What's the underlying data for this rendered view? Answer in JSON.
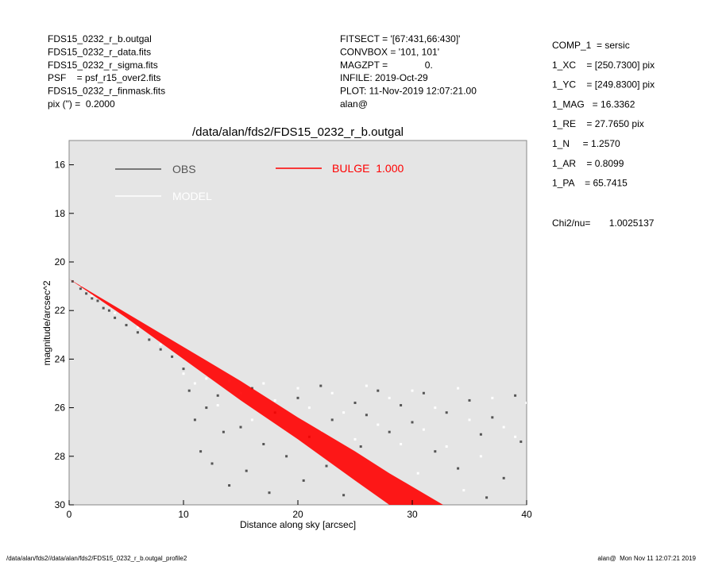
{
  "header": {
    "left": [
      "FDS15_0232_r_b.outgal",
      "FDS15_0232_r_data.fits",
      "FDS15_0232_r_sigma.fits",
      "PSF    = psf_r15_over2.fits",
      "FDS15_0232_r_finmask.fits",
      "pix (\") =  0.2000"
    ],
    "middle": [
      "FITSECT = '[67:431,66:430]'",
      "CONVBOX = '101, 101'",
      "MAGZPT =              0.",
      "INFILE: 2019-Oct-29",
      "PLOT: 11-Nov-2019 12:07:21.00",
      "alan@"
    ],
    "right": [
      "COMP_1  = sersic",
      "1_XC    = [250.7300] pix",
      "1_YC    = [249.8300] pix",
      "1_MAG   = 16.3362",
      "1_RE    = 27.7650 pix",
      "1_N     = 1.2570",
      "1_AR    = 0.8099",
      "1_PA    = 65.7415"
    ],
    "chi2": "Chi2/nu=       1.0025137"
  },
  "footer": {
    "left": "/data/alan/fds2//data/alan/fds2/FDS15_0232_r_b.outgal_profile2",
    "right": "alan@  Mon Nov 11 12:07:21 2019"
  },
  "chart_data": {
    "type": "scatter",
    "title": "/data/alan/fds2/FDS15_0232_r_b.outgal",
    "x_label": "Distance along sky [arcsec]",
    "y_label": "magnitude/arcsec^2",
    "xlim": [
      0,
      40
    ],
    "xticks": [
      0,
      10,
      20,
      30,
      40
    ],
    "ylim": [
      30,
      15
    ],
    "yticks": [
      16,
      18,
      20,
      22,
      24,
      26,
      28,
      30
    ],
    "background": "#e5e5e5",
    "series": [
      {
        "name": "OBS",
        "color": "#555555",
        "x": [
          0.3,
          1,
          1.5,
          2,
          2.5,
          3,
          3.5,
          4,
          5,
          6,
          7,
          8,
          9,
          10,
          10.5,
          11,
          11.5,
          12,
          12.5,
          13,
          13.5,
          14,
          15,
          15.5,
          16,
          17,
          17.5,
          18,
          19,
          20,
          20.5,
          21,
          22,
          22.5,
          23,
          24,
          25,
          25.5,
          26,
          27,
          28,
          29,
          30,
          31,
          32,
          33,
          34,
          35,
          36,
          37,
          38,
          39,
          39.5,
          36.5
        ],
        "values": [
          20.8,
          21.1,
          21.3,
          21.5,
          21.6,
          21.9,
          22.0,
          22.3,
          22.6,
          22.9,
          23.2,
          23.6,
          23.9,
          24.4,
          25.3,
          26.5,
          27.8,
          26.0,
          28.3,
          25.5,
          27.0,
          29.2,
          26.8,
          28.6,
          25.2,
          27.5,
          29.5,
          26.2,
          28.0,
          25.6,
          29.0,
          27.2,
          25.1,
          28.4,
          26.5,
          29.6,
          25.8,
          27.6,
          26.3,
          25.3,
          27.0,
          25.9,
          26.6,
          25.4,
          27.8,
          26.2,
          28.5,
          25.7,
          27.1,
          26.4,
          28.9,
          25.5,
          27.4,
          29.7
        ]
      },
      {
        "name": "MODEL",
        "color": "#ffffff",
        "x": [
          1,
          2,
          4,
          6,
          8,
          10,
          11,
          12,
          13,
          14,
          15,
          16,
          17,
          18,
          19,
          20,
          21,
          22,
          23,
          24,
          25,
          26,
          27,
          28,
          29,
          30,
          31,
          32,
          33,
          34,
          35,
          36,
          37,
          38,
          39,
          40,
          30.5,
          34.5
        ],
        "values": [
          21.0,
          21.4,
          22.1,
          22.7,
          23.4,
          24.6,
          25.0,
          24.8,
          25.9,
          24.9,
          25.4,
          26.5,
          25.0,
          25.7,
          26.9,
          25.2,
          26.0,
          27.0,
          25.4,
          26.2,
          27.3,
          25.1,
          26.7,
          25.6,
          27.5,
          25.3,
          26.9,
          26.0,
          27.6,
          25.2,
          26.5,
          28.0,
          25.6,
          26.8,
          27.2,
          25.8,
          28.7,
          29.4
        ]
      },
      {
        "name": "BULGE  1.000",
        "color": "#ff0000",
        "style": "band",
        "x": [
          0,
          5,
          10,
          15,
          20,
          25,
          28,
          32.7
        ],
        "values": [
          20.7,
          22.1,
          23.5,
          24.9,
          26.4,
          27.8,
          28.7,
          30
        ],
        "low": [
          20.7,
          22.3,
          24.0,
          25.7,
          27.3,
          29.0,
          30,
          30
        ]
      }
    ]
  }
}
